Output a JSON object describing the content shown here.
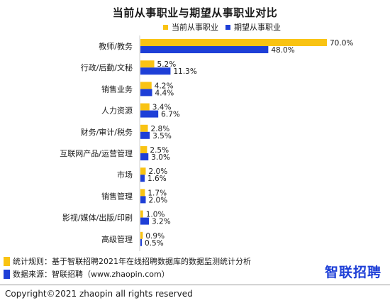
{
  "colors": {
    "current": "#f9c313",
    "expected": "#1e3fd7",
    "axis": "#cfcfcf"
  },
  "chart_data": {
    "type": "bar",
    "orientation": "horizontal",
    "title": "当前从事职业与期望从事职业对比",
    "categories": [
      "教师/教务",
      "行政/后勤/文秘",
      "销售业务",
      "人力资源",
      "财务/审计/税务",
      "互联网产品/运营管理",
      "市场",
      "销售管理",
      "影视/媒体/出版/印刷",
      "高级管理"
    ],
    "series": [
      {
        "name": "当前从事职业",
        "values": [
          70.0,
          5.2,
          4.2,
          3.4,
          2.8,
          2.5,
          2.0,
          1.7,
          1.0,
          0.9
        ]
      },
      {
        "name": "期望从事职业",
        "values": [
          48.0,
          11.3,
          4.4,
          6.7,
          3.5,
          3.0,
          1.6,
          2.0,
          3.2,
          0.5
        ]
      }
    ],
    "xlim": [
      0,
      70
    ],
    "value_suffix": "%",
    "legend_position": "top"
  },
  "footer": {
    "method": "统计规则：基于智联招聘2021年在线招聘数据库的数据监测统计分析",
    "source": "数据来源：智联招聘（www.zhaopin.com）",
    "brand": "智联招聘",
    "copyright": "Copyright©2021 zhaopin all rights reserved"
  }
}
